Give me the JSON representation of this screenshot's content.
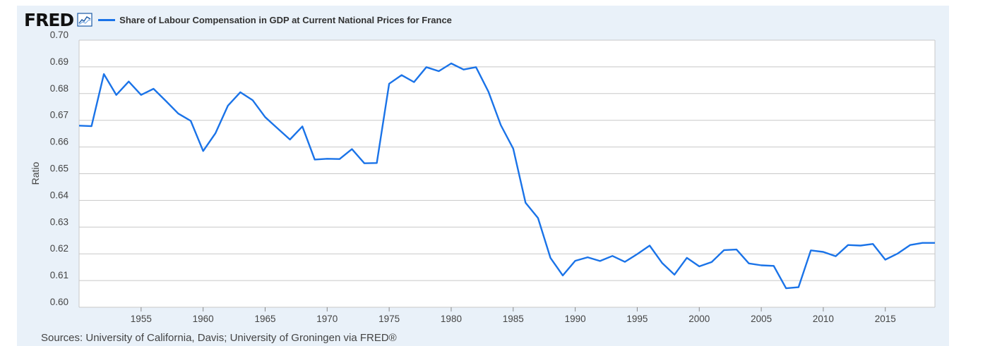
{
  "header": {
    "logo_text": "FRED",
    "legend_label": "Share of Labour Compensation in GDP at Current National Prices for France"
  },
  "colors": {
    "series": "#1a73e8",
    "panel_bg": "#e9f1f9",
    "plot_bg": "#ffffff",
    "grid": "#c8c8c8"
  },
  "footer": {
    "source_text": "Sources: University of California, Davis; University of Groningen via FRED®"
  },
  "chart_data": {
    "type": "line",
    "title": "Share of Labour Compensation in GDP at Current National Prices for France",
    "ylabel": "Ratio",
    "xlabel": "",
    "xlim": [
      1950,
      2019
    ],
    "ylim": [
      0.6,
      0.7
    ],
    "yticks": [
      0.6,
      0.61,
      0.62,
      0.63,
      0.64,
      0.65,
      0.66,
      0.67,
      0.68,
      0.69,
      0.7
    ],
    "ytick_labels": [
      "0.60",
      "0.61",
      "0.62",
      "0.63",
      "0.64",
      "0.65",
      "0.66",
      "0.67",
      "0.68",
      "0.69",
      "0.70"
    ],
    "xticks": [
      1955,
      1960,
      1965,
      1970,
      1975,
      1980,
      1985,
      1990,
      1995,
      2000,
      2005,
      2010,
      2015
    ],
    "xtick_labels": [
      "1955",
      "1960",
      "1965",
      "1970",
      "1975",
      "1980",
      "1985",
      "1990",
      "1995",
      "2000",
      "2005",
      "2010",
      "2015"
    ],
    "grid": true,
    "legend": "top-left",
    "series": [
      {
        "name": "Share of Labour Compensation in GDP at Current National Prices for France",
        "x": [
          1950,
          1951,
          1952,
          1953,
          1954,
          1955,
          1956,
          1957,
          1958,
          1959,
          1960,
          1961,
          1962,
          1963,
          1964,
          1965,
          1966,
          1967,
          1968,
          1969,
          1970,
          1971,
          1972,
          1973,
          1974,
          1975,
          1976,
          1977,
          1978,
          1979,
          1980,
          1981,
          1982,
          1983,
          1984,
          1985,
          1986,
          1987,
          1988,
          1989,
          1990,
          1991,
          1992,
          1993,
          1994,
          1995,
          1996,
          1997,
          1998,
          1999,
          2000,
          2001,
          2002,
          2003,
          2004,
          2005,
          2006,
          2007,
          2008,
          2009,
          2010,
          2011,
          2012,
          2013,
          2014,
          2015,
          2016,
          2017,
          2018,
          2019
        ],
        "values": [
          0.668,
          0.6678,
          0.6873,
          0.6795,
          0.6845,
          0.6795,
          0.6818,
          0.6772,
          0.6725,
          0.6698,
          0.6585,
          0.6652,
          0.6755,
          0.6805,
          0.6775,
          0.6712,
          0.667,
          0.6628,
          0.6677,
          0.6553,
          0.6556,
          0.6555,
          0.6592,
          0.6539,
          0.654,
          0.6837,
          0.6869,
          0.6843,
          0.6899,
          0.6884,
          0.6913,
          0.689,
          0.6899,
          0.6807,
          0.6682,
          0.6594,
          0.6391,
          0.6334,
          0.6185,
          0.6119,
          0.6174,
          0.6187,
          0.6173,
          0.6192,
          0.617,
          0.6199,
          0.6231,
          0.6166,
          0.6122,
          0.6185,
          0.6153,
          0.6169,
          0.6214,
          0.6216,
          0.6164,
          0.6157,
          0.6155,
          0.6071,
          0.6075,
          0.6213,
          0.6207,
          0.6191,
          0.6233,
          0.6231,
          0.6237,
          0.6178,
          0.6201,
          0.6233,
          0.6241,
          0.6241
        ]
      }
    ]
  }
}
